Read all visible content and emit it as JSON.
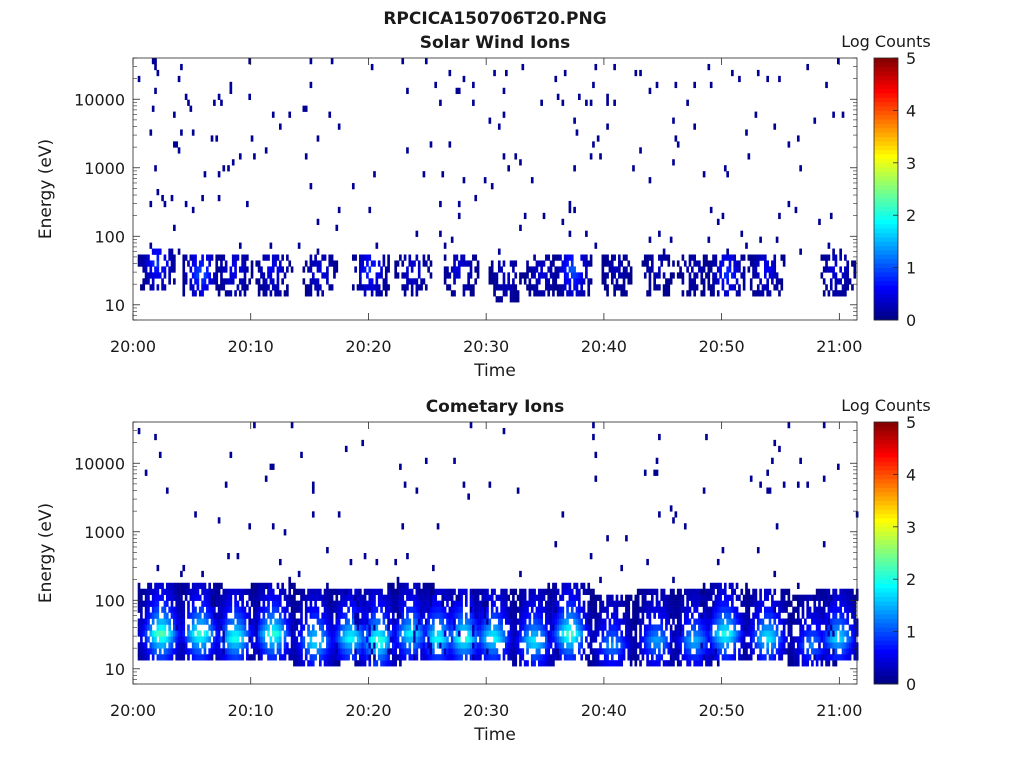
{
  "figure": {
    "title": "RPCICA150706T20.PNG"
  },
  "colors": {
    "colormap": "jet",
    "axis": "#262626",
    "background": "#ffffff"
  },
  "chart_data": [
    {
      "type": "heatmap",
      "title": "Solar Wind Ions",
      "xlabel": "Time",
      "ylabel": "Energy (eV)",
      "colorbar_label": "Log Counts",
      "colorbar_ticks": [
        "0",
        "1",
        "2",
        "3",
        "4",
        "5"
      ],
      "clim": [
        0,
        5
      ],
      "xticks": [
        "20:00",
        "20:10",
        "20:20",
        "20:30",
        "20:40",
        "20:50",
        "21:00"
      ],
      "yticks": [
        "10",
        "100",
        "1000",
        "10000"
      ],
      "yscale": "log",
      "ylim": [
        6,
        40000
      ],
      "xlim_minutes": [
        0,
        61.5
      ],
      "pattern": "sparse",
      "blobs": [
        [
          2.0,
          1.6,
          0.9
        ],
        [
          5.7,
          1.45,
          1.1
        ],
        [
          8.5,
          1.5,
          0.6
        ],
        [
          11.8,
          1.5,
          0.6
        ],
        [
          15.8,
          1.45,
          0.5
        ],
        [
          20.1,
          1.5,
          0.9
        ],
        [
          23.7,
          1.5,
          0.5
        ],
        [
          27.7,
          1.5,
          0.5
        ],
        [
          31.6,
          1.4,
          0.4
        ],
        [
          34.6,
          1.45,
          0.45
        ],
        [
          37.3,
          1.5,
          1.1
        ],
        [
          41.0,
          1.5,
          0.3
        ],
        [
          44.5,
          1.5,
          0.3
        ],
        [
          47.5,
          1.5,
          0.3
        ],
        [
          50.4,
          1.45,
          0.9
        ],
        [
          53.7,
          1.5,
          0.6
        ],
        [
          59.7,
          1.5,
          0.5
        ]
      ]
    },
    {
      "type": "heatmap",
      "title": "Cometary Ions",
      "xlabel": "Time",
      "ylabel": "Energy (eV)",
      "colorbar_label": "Log Counts",
      "colorbar_ticks": [
        "0",
        "1",
        "2",
        "3",
        "4",
        "5"
      ],
      "clim": [
        0,
        5
      ],
      "xticks": [
        "20:00",
        "20:10",
        "20:20",
        "20:30",
        "20:40",
        "20:50",
        "21:00"
      ],
      "yticks": [
        "10",
        "100",
        "1000",
        "10000"
      ],
      "yscale": "log",
      "ylim": [
        6,
        40000
      ],
      "xlim_minutes": [
        0,
        61.5
      ],
      "pattern": "dense",
      "blobs": [
        [
          2.3,
          1.5,
          2.4
        ],
        [
          5.6,
          1.5,
          2.2
        ],
        [
          8.6,
          1.45,
          2.1
        ],
        [
          11.8,
          1.5,
          2.2
        ],
        [
          15.4,
          1.4,
          1.9
        ],
        [
          18.4,
          1.45,
          2.0
        ],
        [
          20.7,
          1.4,
          2.3
        ],
        [
          23.5,
          1.5,
          1.9
        ],
        [
          25.8,
          1.45,
          2.0
        ],
        [
          28.0,
          1.45,
          2.2
        ],
        [
          30.5,
          1.45,
          2.0
        ],
        [
          34.0,
          1.4,
          1.9
        ],
        [
          37.0,
          1.5,
          2.3
        ],
        [
          40.6,
          1.35,
          1.4
        ],
        [
          44.4,
          1.4,
          1.5
        ],
        [
          47.6,
          1.4,
          1.6
        ],
        [
          50.2,
          1.5,
          2.1
        ],
        [
          53.8,
          1.45,
          1.9
        ],
        [
          57.6,
          1.35,
          1.3
        ],
        [
          59.8,
          1.45,
          1.8
        ]
      ]
    }
  ]
}
